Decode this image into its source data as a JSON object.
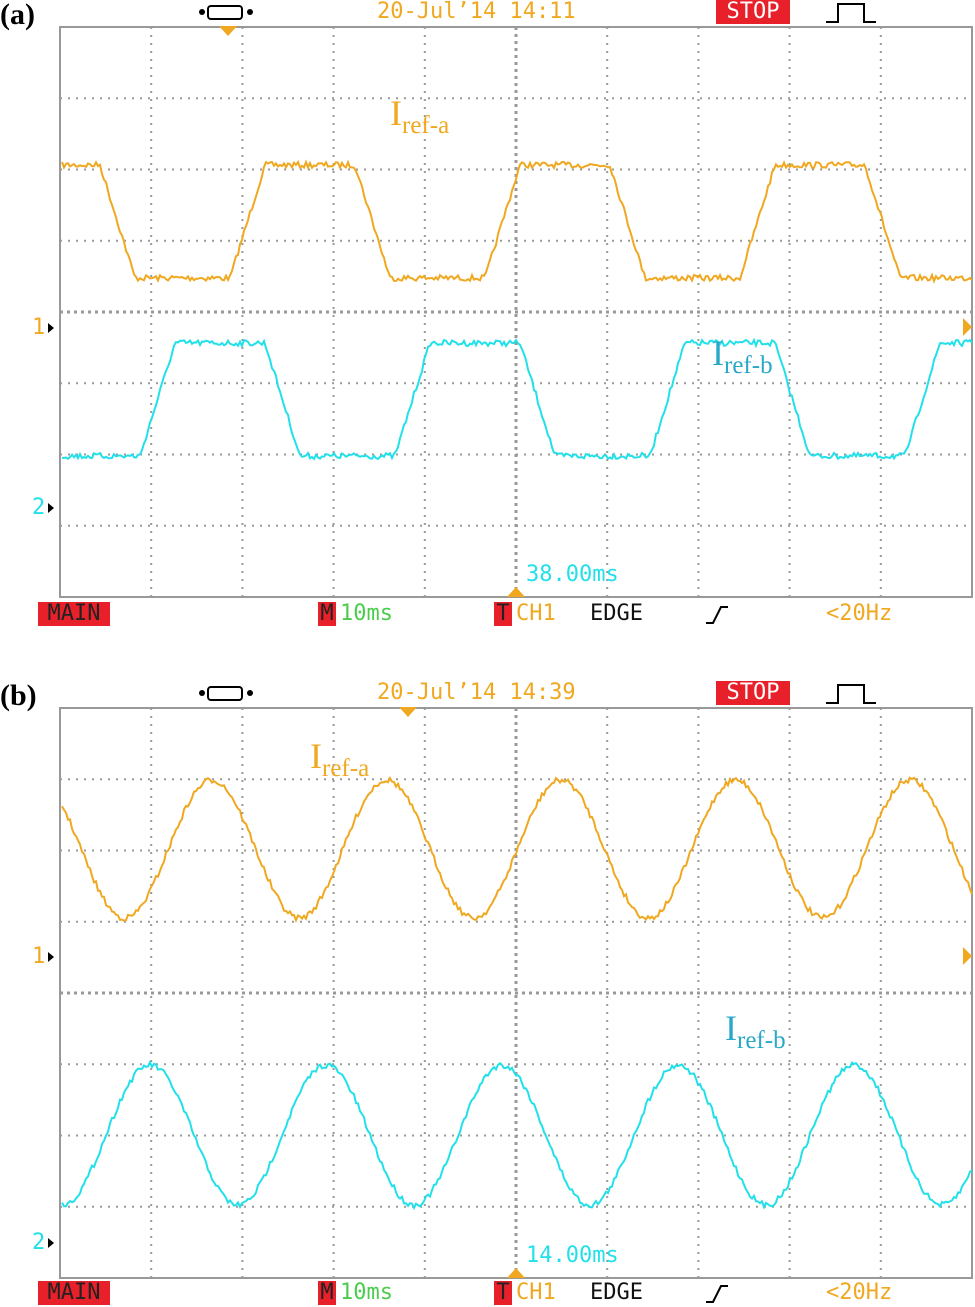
{
  "panels": [
    {
      "label": "(a)",
      "timestamp": "20-Jul’14 14:11",
      "status": "STOP",
      "channel_markers": [
        "1",
        "2"
      ],
      "trigger_time": "38.00ms",
      "footer": {
        "mode": "MAIN",
        "timebase_marker": "M",
        "timebase": "10ms",
        "trigger_marker": "T",
        "trigger_source": "CH1",
        "trigger_type": "EDGE",
        "frequency": "<20Hz"
      },
      "traces": [
        {
          "symbol": "I",
          "subscript": "ref-a"
        },
        {
          "symbol": "I",
          "subscript": "ref-b"
        }
      ]
    },
    {
      "label": "(b)",
      "timestamp": "20-Jul’14 14:39",
      "status": "STOP",
      "channel_markers": [
        "1",
        "2"
      ],
      "trigger_time": "14.00ms",
      "footer": {
        "mode": "MAIN",
        "timebase_marker": "M",
        "timebase": "10ms",
        "trigger_marker": "T",
        "trigger_source": "CH1",
        "trigger_type": "EDGE",
        "frequency": "<20Hz"
      },
      "traces": [
        {
          "symbol": "I",
          "subscript": "ref-a"
        },
        {
          "symbol": "I",
          "subscript": "ref-b"
        }
      ]
    }
  ]
}
